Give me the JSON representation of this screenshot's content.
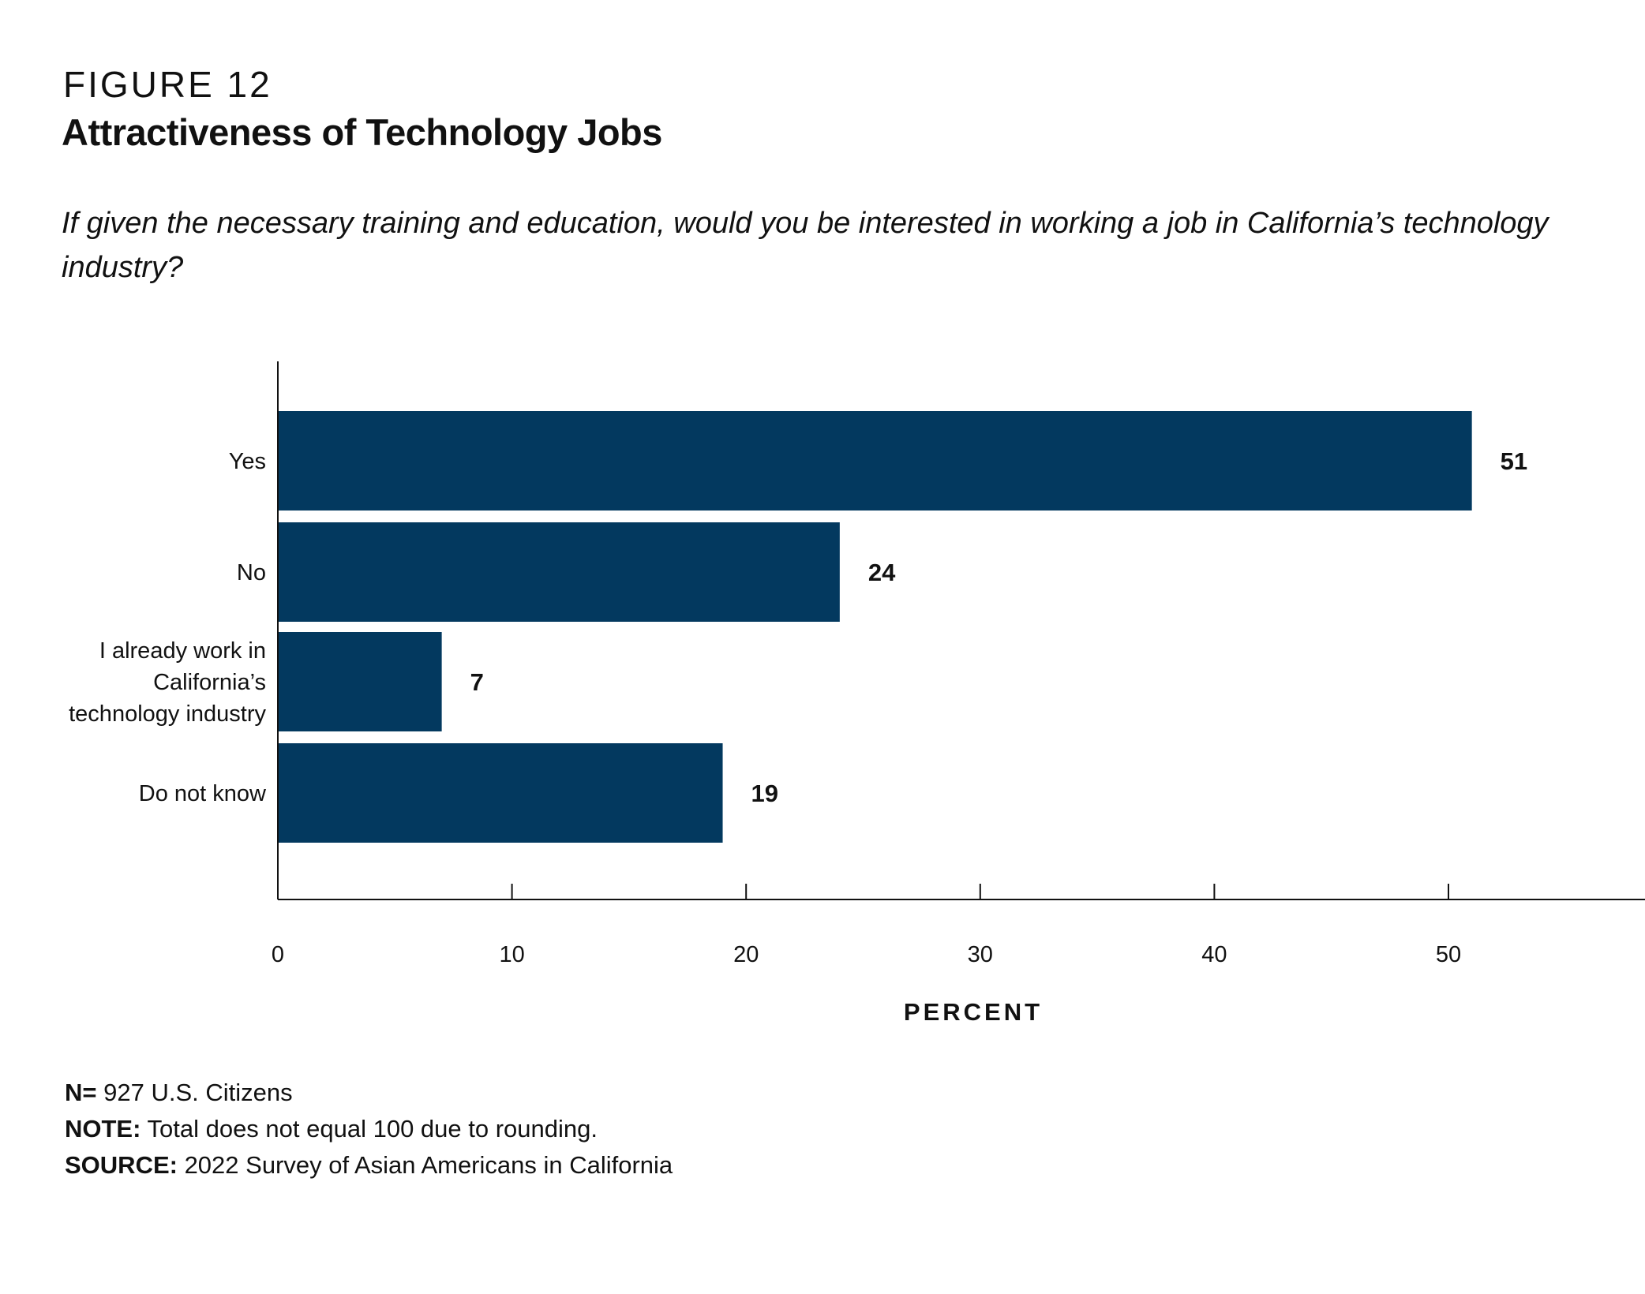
{
  "figure_label": "FIGURE 12",
  "title": "Attractiveness of Technology Jobs",
  "subtitle": "If given the necessary training and education, would you be interested in working a job in California’s technology industry?",
  "bar_color": "#03395f",
  "chart_data": {
    "type": "bar",
    "orientation": "horizontal",
    "categories": [
      [
        "Yes"
      ],
      [
        "No"
      ],
      [
        "I already work in",
        "California’s",
        "technology industry"
      ],
      [
        "Do not know"
      ]
    ],
    "category_names": [
      "Yes",
      "No",
      "I already work in California’s technology industry",
      "Do not know"
    ],
    "values": [
      51,
      24,
      7,
      19
    ],
    "value_labels": [
      "51",
      "24",
      "7",
      "19"
    ],
    "xlabel": "PERCENT",
    "xticks": [
      0,
      10,
      20,
      30,
      40,
      50
    ],
    "xtick_labels": [
      "0",
      "10",
      "20",
      "30",
      "40",
      "50"
    ],
    "xlim": [
      0,
      58.3
    ],
    "grid": false
  },
  "footer": {
    "n_label": "N=",
    "n_text": " 927 U.S. Citizens",
    "note_label": "NOTE:",
    "note_text": " Total does not equal 100 due to rounding.",
    "source_label": "SOURCE:",
    "source_text": " 2022 Survey of Asian Americans in California"
  }
}
